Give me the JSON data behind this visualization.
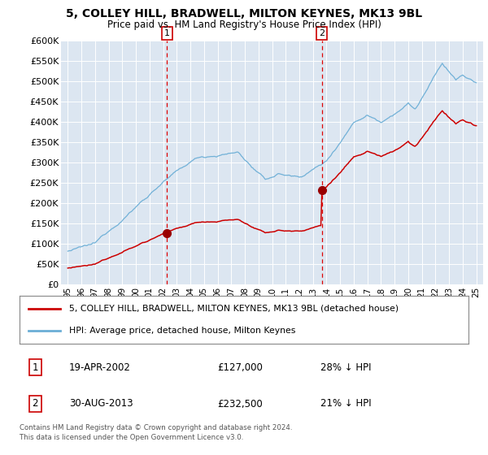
{
  "title": "5, COLLEY HILL, BRADWELL, MILTON KEYNES, MK13 9BL",
  "subtitle": "Price paid vs. HM Land Registry's House Price Index (HPI)",
  "legend_line1": "5, COLLEY HILL, BRADWELL, MILTON KEYNES, MK13 9BL (detached house)",
  "legend_line2": "HPI: Average price, detached house, Milton Keynes",
  "footer1": "Contains HM Land Registry data © Crown copyright and database right 2024.",
  "footer2": "This data is licensed under the Open Government Licence v3.0.",
  "sale1_date": "19-APR-2002",
  "sale1_price": "£127,000",
  "sale1_hpi": "28% ↓ HPI",
  "sale1_x": 2002.29,
  "sale1_y": 127000,
  "sale2_date": "30-AUG-2013",
  "sale2_price": "£232,500",
  "sale2_hpi": "21% ↓ HPI",
  "sale2_x": 2013.66,
  "sale2_y": 232500,
  "hpi_color": "#6baed6",
  "price_color": "#cc0000",
  "marker_color": "#990000",
  "vline_color": "#dd0000",
  "plot_bg_color": "#dce6f1",
  "ylim": [
    0,
    600000
  ],
  "xlim_start": 1994.5,
  "xlim_end": 2025.5,
  "yticks": [
    0,
    50000,
    100000,
    150000,
    200000,
    250000,
    300000,
    350000,
    400000,
    450000,
    500000,
    550000,
    600000
  ],
  "ytick_labels": [
    "£0",
    "£50K",
    "£100K",
    "£150K",
    "£200K",
    "£250K",
    "£300K",
    "£350K",
    "£400K",
    "£450K",
    "£500K",
    "£550K",
    "£600K"
  ],
  "xtick_values": [
    1995,
    1996,
    1997,
    1998,
    1999,
    2000,
    2001,
    2002,
    2003,
    2004,
    2005,
    2006,
    2007,
    2008,
    2009,
    2010,
    2011,
    2012,
    2013,
    2014,
    2015,
    2016,
    2017,
    2018,
    2019,
    2020,
    2021,
    2022,
    2023,
    2024,
    2025
  ],
  "xtick_labels": [
    "95",
    "96",
    "97",
    "98",
    "99",
    "00",
    "01",
    "02",
    "03",
    "04",
    "05",
    "06",
    "07",
    "08",
    "09",
    "10",
    "11",
    "12",
    "13",
    "14",
    "15",
    "16",
    "17",
    "18",
    "19",
    "20",
    "21",
    "22",
    "23",
    "24",
    "25"
  ]
}
